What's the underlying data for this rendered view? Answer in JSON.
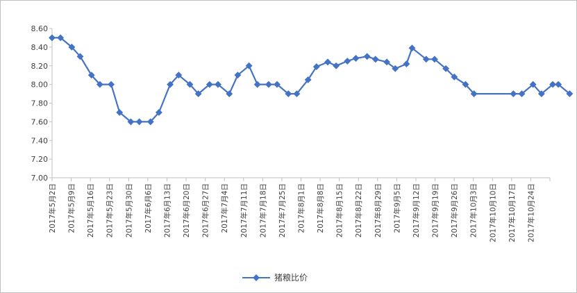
{
  "chart_data": {
    "type": "line",
    "ylim": [
      7.0,
      8.6
    ],
    "yticks": [
      "7.00",
      "7.20",
      "7.40",
      "7.60",
      "7.80",
      "8.00",
      "8.20",
      "8.40",
      "8.60"
    ],
    "ytick_values": [
      7.0,
      7.2,
      7.4,
      7.6,
      7.8,
      8.0,
      8.2,
      8.4,
      8.6
    ],
    "grid": false,
    "legend_position": "bottom",
    "colors": {
      "series": "#4472c4",
      "axis": "#bfbfbf",
      "text": "#404040"
    },
    "x_labels": [
      "2017年5月2日",
      "2017年5月9日",
      "2017年5月16日",
      "2017年5月23日",
      "2017年5月30日",
      "2017年6月6日",
      "2017年6月13日",
      "2017年6月20日",
      "2017年6月27日",
      "2017年7月4日",
      "2017年7月11日",
      "2017年7月18日",
      "2017年7月25日",
      "2017年8月1日",
      "2017年8月8日",
      "2017年8月15日",
      "2017年8月22日",
      "2017年8月29日",
      "2017年9月5日",
      "2017年9月12日",
      "2017年9月19日",
      "2017年9月26日",
      "2017年10月3日",
      "2017年10月10日",
      "2017年10月17日",
      "2017年10月24日"
    ],
    "x_range_days": [
      0,
      177
    ],
    "series": [
      {
        "name": "猪粮比价",
        "points": [
          {
            "x": "2017-05-02",
            "y": 8.5
          },
          {
            "x": "2017-05-05",
            "y": 8.5
          },
          {
            "x": "2017-05-09",
            "y": 8.4
          },
          {
            "x": "2017-05-12",
            "y": 8.3
          },
          {
            "x": "2017-05-16",
            "y": 8.1
          },
          {
            "x": "2017-05-19",
            "y": 8.0
          },
          {
            "x": "2017-05-23",
            "y": 8.0
          },
          {
            "x": "2017-05-26",
            "y": 7.7
          },
          {
            "x": "2017-05-30",
            "y": 7.6
          },
          {
            "x": "2017-06-02",
            "y": 7.6
          },
          {
            "x": "2017-06-06",
            "y": 7.6
          },
          {
            "x": "2017-06-09",
            "y": 7.7
          },
          {
            "x": "2017-06-13",
            "y": 8.0
          },
          {
            "x": "2017-06-16",
            "y": 8.1
          },
          {
            "x": "2017-06-20",
            "y": 8.0
          },
          {
            "x": "2017-06-23",
            "y": 7.9
          },
          {
            "x": "2017-06-27",
            "y": 8.0
          },
          {
            "x": "2017-06-30",
            "y": 8.0
          },
          {
            "x": "2017-07-04",
            "y": 7.9
          },
          {
            "x": "2017-07-07",
            "y": 8.1
          },
          {
            "x": "2017-07-11",
            "y": 8.2
          },
          {
            "x": "2017-07-14",
            "y": 8.0
          },
          {
            "x": "2017-07-18",
            "y": 8.0
          },
          {
            "x": "2017-07-21",
            "y": 8.0
          },
          {
            "x": "2017-07-25",
            "y": 7.9
          },
          {
            "x": "2017-07-28",
            "y": 7.9
          },
          {
            "x": "2017-08-01",
            "y": 8.05
          },
          {
            "x": "2017-08-04",
            "y": 8.19
          },
          {
            "x": "2017-08-08",
            "y": 8.24
          },
          {
            "x": "2017-08-11",
            "y": 8.2
          },
          {
            "x": "2017-08-15",
            "y": 8.25
          },
          {
            "x": "2017-08-18",
            "y": 8.28
          },
          {
            "x": "2017-08-22",
            "y": 8.3
          },
          {
            "x": "2017-08-25",
            "y": 8.27
          },
          {
            "x": "2017-08-29",
            "y": 8.24
          },
          {
            "x": "2017-09-01",
            "y": 8.17
          },
          {
            "x": "2017-09-05",
            "y": 8.22
          },
          {
            "x": "2017-09-07",
            "y": 8.39
          },
          {
            "x": "2017-09-12",
            "y": 8.27
          },
          {
            "x": "2017-09-15",
            "y": 8.27
          },
          {
            "x": "2017-09-19",
            "y": 8.17
          },
          {
            "x": "2017-09-22",
            "y": 8.08
          },
          {
            "x": "2017-09-26",
            "y": 8.0
          },
          {
            "x": "2017-09-29",
            "y": 7.9
          },
          {
            "x": "2017-10-13",
            "y": 7.9
          },
          {
            "x": "2017-10-16",
            "y": 7.9
          },
          {
            "x": "2017-10-20",
            "y": 8.0
          },
          {
            "x": "2017-10-23",
            "y": 7.9
          },
          {
            "x": "2017-10-27",
            "y": 8.0
          },
          {
            "x": "2017-10-29",
            "y": 8.0
          },
          {
            "x": "2017-11-02",
            "y": 7.9
          }
        ]
      }
    ]
  }
}
